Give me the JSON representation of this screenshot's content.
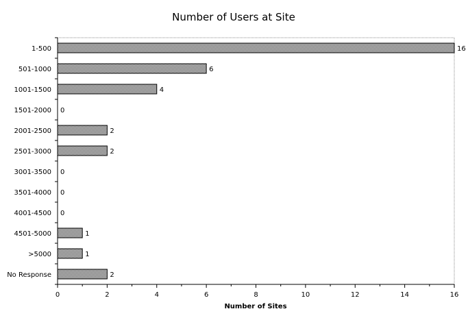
{
  "chart_data": {
    "type": "bar",
    "orientation": "horizontal",
    "title": "Number of Users at Site",
    "xlabel": "Number of Sites",
    "ylabel": "",
    "categories": [
      "1-500",
      "501-1000",
      "1001-1500",
      "1501-2000",
      "2001-2500",
      "2501-3000",
      "3001-3500",
      "3501-4000",
      "4001-4500",
      "4501-5000",
      ">5000",
      "No Response"
    ],
    "values": [
      16,
      6,
      4,
      0,
      2,
      2,
      0,
      0,
      0,
      1,
      1,
      2
    ],
    "xlim": [
      0,
      16
    ],
    "xticks": [
      0,
      2,
      4,
      6,
      8,
      10,
      12,
      14,
      16
    ],
    "grid": false,
    "legend": "none",
    "bar_fill": "#5a5a5a"
  }
}
